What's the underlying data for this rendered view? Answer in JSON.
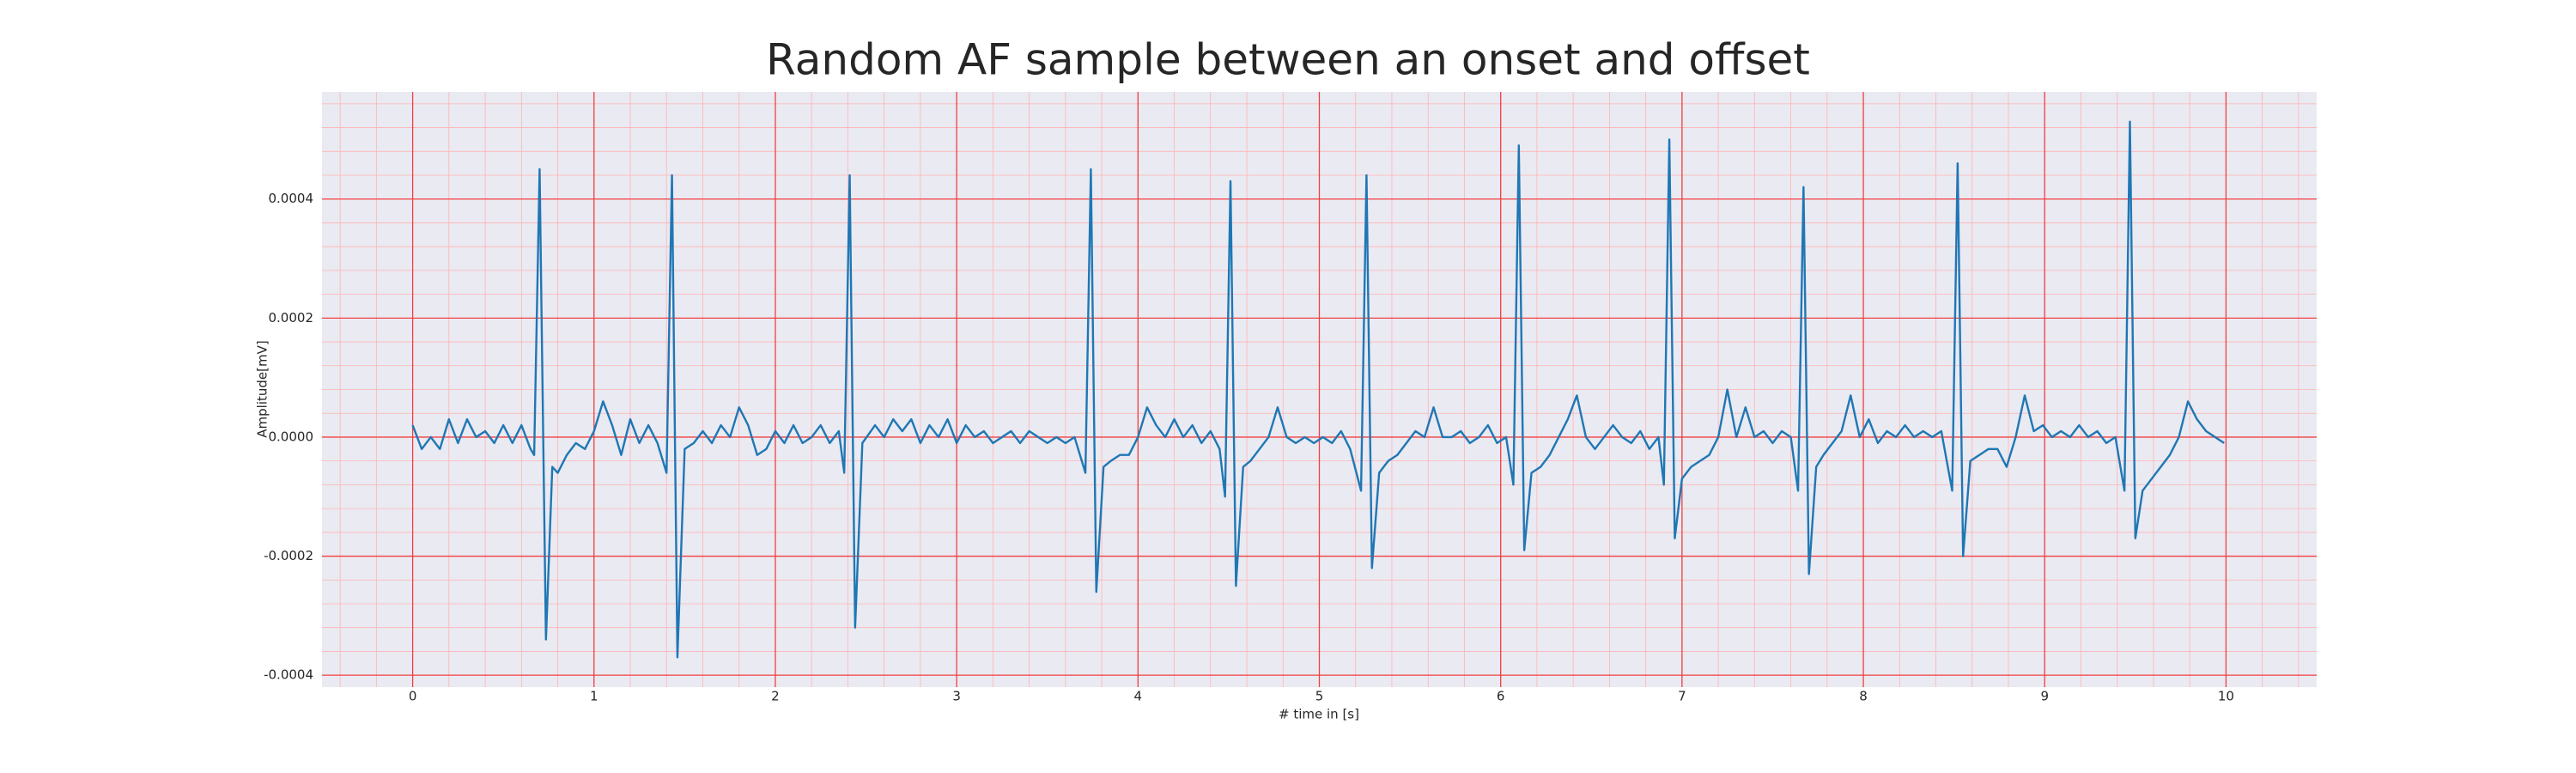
{
  "chart_data": {
    "type": "line",
    "title": "Random AF sample between an onset and offset",
    "xlabel": "# time in [s]",
    "ylabel": "Amplitude[mV]",
    "color": "#1f77b4",
    "grid": true,
    "minor_grid": true,
    "xlim": [
      -0.5,
      10.5
    ],
    "xticks": [
      0,
      1,
      2,
      3,
      4,
      5,
      6,
      7,
      8,
      9,
      10
    ],
    "ylim": [
      -0.00042,
      0.00058
    ],
    "yticks": [
      -0.0004,
      -0.0002,
      {
        "value": 0,
        "label": "0.0000"
      },
      0.0002,
      0.0004
    ],
    "x": [
      0.0,
      0.05,
      0.1,
      0.15,
      0.2,
      0.25,
      0.3,
      0.35,
      0.4,
      0.45,
      0.5,
      0.55,
      0.6,
      0.65,
      0.67,
      0.7,
      0.735,
      0.77,
      0.8,
      0.85,
      0.9,
      0.95,
      1.0,
      1.05,
      1.1,
      1.15,
      1.2,
      1.25,
      1.3,
      1.35,
      1.4,
      1.43,
      1.46,
      1.5,
      1.55,
      1.6,
      1.65,
      1.7,
      1.75,
      1.8,
      1.85,
      1.9,
      1.95,
      2.0,
      2.05,
      2.1,
      2.15,
      2.2,
      2.25,
      2.3,
      2.35,
      2.38,
      2.41,
      2.44,
      2.48,
      2.55,
      2.6,
      2.65,
      2.7,
      2.75,
      2.8,
      2.85,
      2.9,
      2.95,
      3.0,
      3.05,
      3.1,
      3.15,
      3.2,
      3.25,
      3.3,
      3.35,
      3.4,
      3.45,
      3.5,
      3.55,
      3.6,
      3.65,
      3.71,
      3.74,
      3.77,
      3.81,
      3.85,
      3.9,
      3.95,
      4.0,
      4.05,
      4.1,
      4.15,
      4.2,
      4.25,
      4.3,
      4.35,
      4.4,
      4.45,
      4.48,
      4.51,
      4.54,
      4.58,
      4.62,
      4.67,
      4.72,
      4.77,
      4.82,
      4.87,
      4.92,
      4.97,
      5.02,
      5.07,
      5.12,
      5.17,
      5.23,
      5.26,
      5.29,
      5.33,
      5.38,
      5.43,
      5.48,
      5.53,
      5.58,
      5.63,
      5.68,
      5.73,
      5.78,
      5.83,
      5.88,
      5.93,
      5.98,
      6.03,
      6.07,
      6.1,
      6.13,
      6.17,
      6.22,
      6.27,
      6.32,
      6.37,
      6.42,
      6.47,
      6.52,
      6.57,
      6.62,
      6.67,
      6.72,
      6.77,
      6.82,
      6.87,
      6.9,
      6.93,
      6.96,
      7.0,
      7.05,
      7.1,
      7.15,
      7.2,
      7.25,
      7.3,
      7.35,
      7.4,
      7.45,
      7.5,
      7.55,
      7.6,
      7.64,
      7.67,
      7.7,
      7.74,
      7.78,
      7.83,
      7.88,
      7.93,
      7.98,
      8.03,
      8.08,
      8.13,
      8.18,
      8.23,
      8.28,
      8.33,
      8.38,
      8.43,
      8.49,
      8.52,
      8.55,
      8.59,
      8.64,
      8.69,
      8.74,
      8.79,
      8.84,
      8.89,
      8.94,
      8.99,
      9.04,
      9.09,
      9.14,
      9.19,
      9.24,
      9.29,
      9.34,
      9.39,
      9.44,
      9.47,
      9.5,
      9.54,
      9.59,
      9.64,
      9.69,
      9.74,
      9.79,
      9.84,
      9.89,
      9.94,
      9.99
    ],
    "values": [
      2e-05,
      -2e-05,
      0,
      -2e-05,
      3e-05,
      -1e-05,
      3e-05,
      0,
      1e-05,
      -1e-05,
      2e-05,
      -1e-05,
      2e-05,
      -2e-05,
      -3e-05,
      0.00045,
      -0.00034,
      -5e-05,
      -6e-05,
      -3e-05,
      -1e-05,
      -2e-05,
      1e-05,
      6e-05,
      2e-05,
      -3e-05,
      3e-05,
      -1e-05,
      2e-05,
      -1e-05,
      -6e-05,
      0.00044,
      -0.00037,
      -2e-05,
      -1e-05,
      1e-05,
      -1e-05,
      2e-05,
      0,
      5e-05,
      2e-05,
      -3e-05,
      -2e-05,
      1e-05,
      -1e-05,
      2e-05,
      -1e-05,
      0,
      2e-05,
      -1e-05,
      1e-05,
      -6e-05,
      0.00044,
      -0.00032,
      -1e-05,
      2e-05,
      0,
      3e-05,
      1e-05,
      3e-05,
      -1e-05,
      2e-05,
      0,
      3e-05,
      -1e-05,
      2e-05,
      0,
      1e-05,
      -1e-05,
      0,
      1e-05,
      -1e-05,
      1e-05,
      0,
      -1e-05,
      0,
      -1e-05,
      0,
      -6e-05,
      0.00045,
      -0.00026,
      -5e-05,
      -4e-05,
      -3e-05,
      -3e-05,
      0,
      5e-05,
      2e-05,
      0,
      3e-05,
      0,
      2e-05,
      -1e-05,
      1e-05,
      -2e-05,
      -0.0001,
      0.00043,
      -0.00025,
      -5e-05,
      -4e-05,
      -2e-05,
      0,
      5e-05,
      0,
      -1e-05,
      0,
      -1e-05,
      0,
      -1e-05,
      1e-05,
      -2e-05,
      -9e-05,
      0.00044,
      -0.00022,
      -6e-05,
      -4e-05,
      -3e-05,
      -1e-05,
      1e-05,
      0,
      5e-05,
      0,
      0,
      1e-05,
      -1e-05,
      0,
      2e-05,
      -1e-05,
      0,
      -8e-05,
      0.00049,
      -0.00019,
      -6e-05,
      -5e-05,
      -3e-05,
      0,
      3e-05,
      7e-05,
      0,
      -2e-05,
      0,
      2e-05,
      0,
      -1e-05,
      1e-05,
      -2e-05,
      0,
      -8e-05,
      0.0005,
      -0.00017,
      -7e-05,
      -5e-05,
      -4e-05,
      -3e-05,
      0,
      8e-05,
      0,
      5e-05,
      0,
      1e-05,
      -1e-05,
      1e-05,
      0,
      -9e-05,
      0.00042,
      -0.00023,
      -5e-05,
      -3e-05,
      -1e-05,
      1e-05,
      7e-05,
      0,
      3e-05,
      -1e-05,
      1e-05,
      0,
      2e-05,
      0,
      1e-05,
      0,
      1e-05,
      -9e-05,
      0.00046,
      -0.0002,
      -4e-05,
      -3e-05,
      -2e-05,
      -2e-05,
      -5e-05,
      0,
      7e-05,
      1e-05,
      2e-05,
      0,
      1e-05,
      0,
      2e-05,
      0,
      1e-05,
      -1e-05,
      0,
      -9e-05,
      0.00053,
      -0.00017,
      -9e-05,
      -7e-05,
      -5e-05,
      -3e-05,
      0,
      6e-05,
      3e-05,
      1e-05,
      0,
      -1e-05
    ]
  }
}
